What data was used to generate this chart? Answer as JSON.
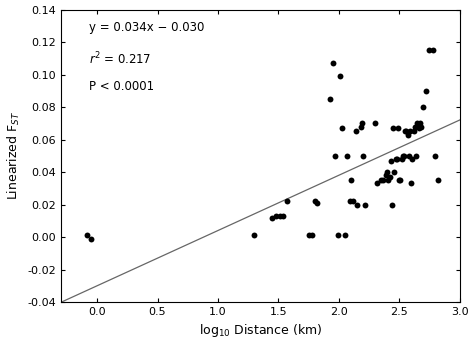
{
  "scatter_x": [
    -0.08,
    -0.05,
    1.3,
    1.45,
    1.48,
    1.51,
    1.54,
    1.57,
    1.75,
    1.78,
    1.8,
    1.82,
    1.93,
    1.95,
    1.97,
    1.99,
    2.01,
    2.03,
    2.05,
    2.07,
    2.09,
    2.1,
    2.12,
    2.14,
    2.15,
    2.18,
    2.19,
    2.2,
    2.22,
    2.3,
    2.32,
    2.35,
    2.37,
    2.39,
    2.4,
    2.41,
    2.42,
    2.43,
    2.44,
    2.45,
    2.46,
    2.47,
    2.48,
    2.49,
    2.5,
    2.51,
    2.52,
    2.53,
    2.54,
    2.55,
    2.56,
    2.57,
    2.58,
    2.59,
    2.6,
    2.61,
    2.62,
    2.63,
    2.64,
    2.65,
    2.66,
    2.67,
    2.68,
    2.7,
    2.72,
    2.75,
    2.78,
    2.8,
    2.82
  ],
  "scatter_y": [
    0.001,
    -0.001,
    0.001,
    0.012,
    0.013,
    0.013,
    0.013,
    0.022,
    0.001,
    0.001,
    0.022,
    0.021,
    0.085,
    0.107,
    0.05,
    0.001,
    0.099,
    0.067,
    0.001,
    0.05,
    0.022,
    0.035,
    0.022,
    0.065,
    0.02,
    0.068,
    0.07,
    0.05,
    0.02,
    0.07,
    0.033,
    0.035,
    0.035,
    0.038,
    0.04,
    0.035,
    0.037,
    0.047,
    0.02,
    0.067,
    0.04,
    0.048,
    0.048,
    0.067,
    0.035,
    0.035,
    0.048,
    0.05,
    0.05,
    0.065,
    0.065,
    0.063,
    0.05,
    0.065,
    0.033,
    0.048,
    0.065,
    0.068,
    0.05,
    0.07,
    0.067,
    0.07,
    0.068,
    0.08,
    0.09,
    0.115,
    0.115,
    0.05,
    0.035
  ],
  "slope": 0.034,
  "intercept": -0.03,
  "xlim": [
    -0.3,
    3.0
  ],
  "ylim": [
    -0.04,
    0.14
  ],
  "xticks": [
    0.0,
    0.5,
    1.0,
    1.5,
    2.0,
    2.5,
    3.0
  ],
  "yticks": [
    -0.04,
    -0.02,
    0.0,
    0.02,
    0.04,
    0.06,
    0.08,
    0.1,
    0.12,
    0.14
  ],
  "xlabel": "log$_{10}$ Distance (km)",
  "ylabel": "Linearized F$_{ST}$",
  "dot_color": "#000000",
  "line_color": "#666666",
  "bg_color": "#ffffff",
  "dot_size": 18,
  "figsize": [
    4.74,
    3.45
  ],
  "dpi": 100
}
